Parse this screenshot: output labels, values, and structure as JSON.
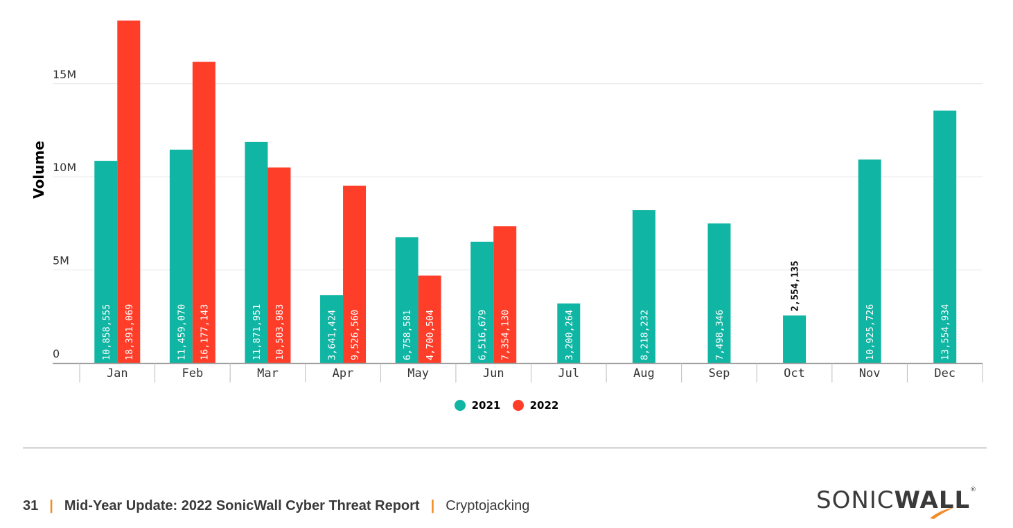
{
  "chart_data": {
    "type": "bar",
    "categories": [
      "Jan",
      "Feb",
      "Mar",
      "Apr",
      "May",
      "Jun",
      "Jul",
      "Aug",
      "Sep",
      "Oct",
      "Nov",
      "Dec"
    ],
    "series": [
      {
        "name": "2021",
        "color": "#10b5a3",
        "values": [
          10858555,
          11459070,
          11871951,
          3641424,
          6758581,
          6516679,
          3200264,
          8218232,
          7498346,
          2554135,
          10925726,
          13554934
        ],
        "labels": [
          "10,858,555",
          "11,459,070",
          "11,871,951",
          "3,641,424",
          "6,758,581",
          "6,516,679",
          "3,200,264",
          "8,218,232",
          "7,498,346",
          "2,554,135",
          "10,925,726",
          "13,554,934"
        ]
      },
      {
        "name": "2022",
        "color": "#ff3e2a",
        "values": [
          18391069,
          16177143,
          10503983,
          9526560,
          4700504,
          7354130,
          null,
          null,
          null,
          null,
          null,
          null
        ],
        "labels": [
          "18,391,069",
          "16,177,143",
          "10,503,983",
          "9,526,560",
          "4,700,504",
          "7,354,130",
          "",
          "",
          "",
          "",
          "",
          ""
        ]
      }
    ],
    "ylabel": "Volume",
    "xlabel": "",
    "yticks": [
      0,
      5000000,
      10000000,
      15000000
    ],
    "ytick_labels": [
      "0",
      "5M",
      "10M",
      "15M"
    ],
    "ylim": [
      0,
      18600000
    ],
    "grid": true,
    "legend_position": "bottom"
  },
  "footer": {
    "page_number": "31",
    "separator": "|",
    "report_title": "Mid-Year Update: 2022 SonicWall Cyber Threat Report",
    "section": "Cryptojacking"
  },
  "logo": {
    "part1": "SONIC",
    "part2": "WALL",
    "mark": "®"
  },
  "colors": {
    "accent": "#f28c28",
    "teal": "#10b5a3",
    "red": "#ff3e2a"
  }
}
